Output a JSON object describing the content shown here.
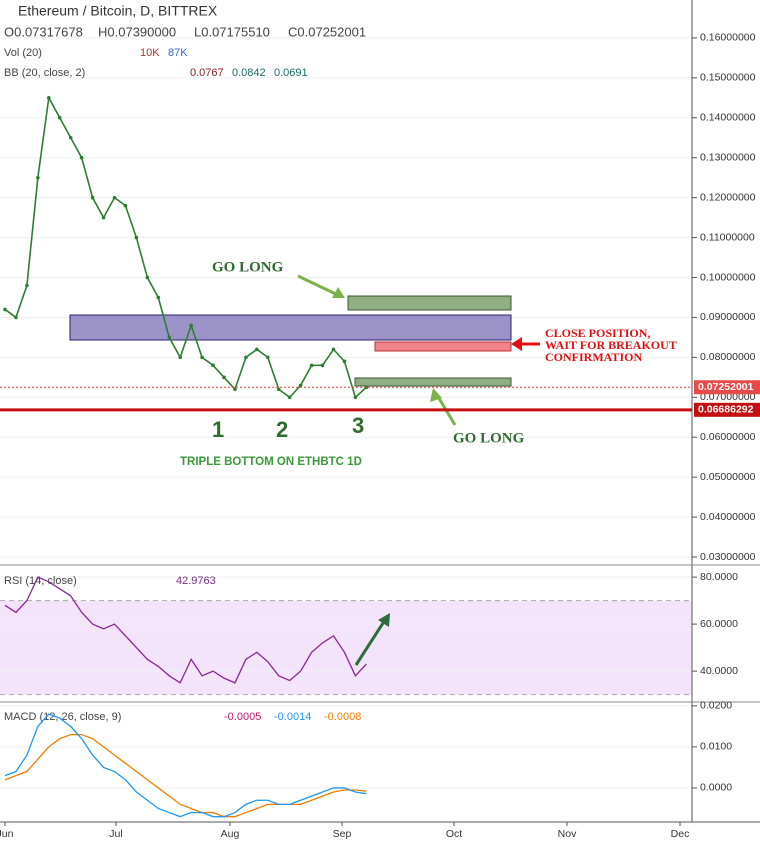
{
  "header": {
    "title": "Ethereum / Bitcoin, D, BITTREX",
    "open": "O0.07317678",
    "high": "H0.07390000",
    "low": "L0.07175510",
    "close": "C0.07252001"
  },
  "vol_legend": {
    "name": "Vol (20)",
    "v1": "10K",
    "v2": "87K"
  },
  "bb_legend": {
    "name": "BB (20, close, 2)",
    "v1": "0.0767",
    "v2": "0.0842",
    "v3": "0.0691"
  },
  "price_pane": {
    "ylim": [
      0.028,
      0.1695
    ],
    "yticks": [
      {
        "value": 0.16,
        "label": "0.16000000"
      },
      {
        "value": 0.15,
        "label": "0.15000000"
      },
      {
        "value": 0.14,
        "label": "0.14000000"
      },
      {
        "value": 0.13,
        "label": "0.13000000"
      },
      {
        "value": 0.12,
        "label": "0.12000000"
      },
      {
        "value": 0.11,
        "label": "0.11000000"
      },
      {
        "value": 0.1,
        "label": "0.10000000"
      },
      {
        "value": 0.09,
        "label": "0.09000000"
      },
      {
        "value": 0.08,
        "label": "0.08000000"
      },
      {
        "value": 0.07,
        "label": "0.07000000"
      },
      {
        "value": 0.06,
        "label": "0.06000000"
      },
      {
        "value": 0.05,
        "label": "0.05000000"
      },
      {
        "value": 0.04,
        "label": "0.04000000"
      },
      {
        "value": 0.03,
        "label": "0.03000000"
      }
    ],
    "closes": [
      0.092,
      0.09,
      0.098,
      0.125,
      0.145,
      0.14,
      0.135,
      0.13,
      0.12,
      0.115,
      0.12,
      0.118,
      0.11,
      0.1,
      0.095,
      0.085,
      0.08,
      0.088,
      0.08,
      0.078,
      0.075,
      0.072,
      0.08,
      0.082,
      0.08,
      0.072,
      0.07,
      0.073,
      0.078,
      0.078,
      0.082,
      0.079,
      0.07,
      0.0725
    ],
    "last_price": {
      "value": 0.07252001,
      "label": "0.07252001"
    },
    "support": {
      "value": 0.06686292,
      "label": "0.06686292"
    }
  },
  "annotations": {
    "go_long_top": "GO LONG",
    "go_long_bottom": "GO LONG",
    "close_position": [
      "CLOSE POSITION,",
      "WAIT FOR BREAKOUT",
      "CONFIRMATION"
    ],
    "bottoms": [
      "1",
      "2",
      "3"
    ],
    "caption": "TRIPLE BOTTOM ON ETHBTC 1D"
  },
  "rsi_pane": {
    "legend": "RSI (14, close)",
    "last": "42.9763",
    "ylim": [
      27.7,
      84.3
    ],
    "yticks": [
      {
        "value": 80,
        "label": "80.0000"
      },
      {
        "value": 60,
        "label": "60.0000"
      },
      {
        "value": 40,
        "label": "40.0000"
      }
    ],
    "bands": [
      70,
      30
    ],
    "values": [
      68,
      65,
      70,
      80,
      78,
      75,
      72,
      65,
      60,
      58,
      60,
      55,
      50,
      45,
      42,
      38,
      35,
      45,
      38,
      40,
      37,
      35,
      45,
      48,
      44,
      38,
      36,
      40,
      48,
      52,
      55,
      48,
      38,
      42.9763
    ]
  },
  "macd_pane": {
    "legend": "MACD (12, 26, close, 9)",
    "v1": "-0.0005",
    "v2": "-0.0014",
    "v3": "-0.0008",
    "ylim": [
      -0.0083,
      0.0207
    ],
    "yticks": [
      {
        "value": 0.02,
        "label": "0.0200"
      },
      {
        "value": 0.01,
        "label": "0.0100"
      },
      {
        "value": 0,
        "label": "0.0000"
      }
    ],
    "macd": [
      0.003,
      0.004,
      0.008,
      0.015,
      0.018,
      0.017,
      0.015,
      0.012,
      0.008,
      0.005,
      0.004,
      0.002,
      -0.001,
      -0.003,
      -0.005,
      -0.006,
      -0.007,
      -0.006,
      -0.006,
      -0.007,
      -0.007,
      -0.006,
      -0.004,
      -0.003,
      -0.003,
      -0.004,
      -0.004,
      -0.003,
      -0.002,
      -0.001,
      0,
      0,
      -0.001,
      -0.0014
    ],
    "signal": [
      0.002,
      0.003,
      0.004,
      0.007,
      0.01,
      0.012,
      0.013,
      0.013,
      0.012,
      0.01,
      0.008,
      0.006,
      0.004,
      0.002,
      0,
      -0.002,
      -0.004,
      -0.005,
      -0.006,
      -0.006,
      -0.007,
      -0.007,
      -0.006,
      -0.005,
      -0.004,
      -0.004,
      -0.004,
      -0.004,
      -0.003,
      -0.002,
      -0.001,
      -0.0005,
      -0.0005,
      -0.0008
    ]
  },
  "time_axis": [
    "Jun",
    "Jul",
    "Aug",
    "Sep",
    "Oct",
    "Nov",
    "Dec"
  ]
}
